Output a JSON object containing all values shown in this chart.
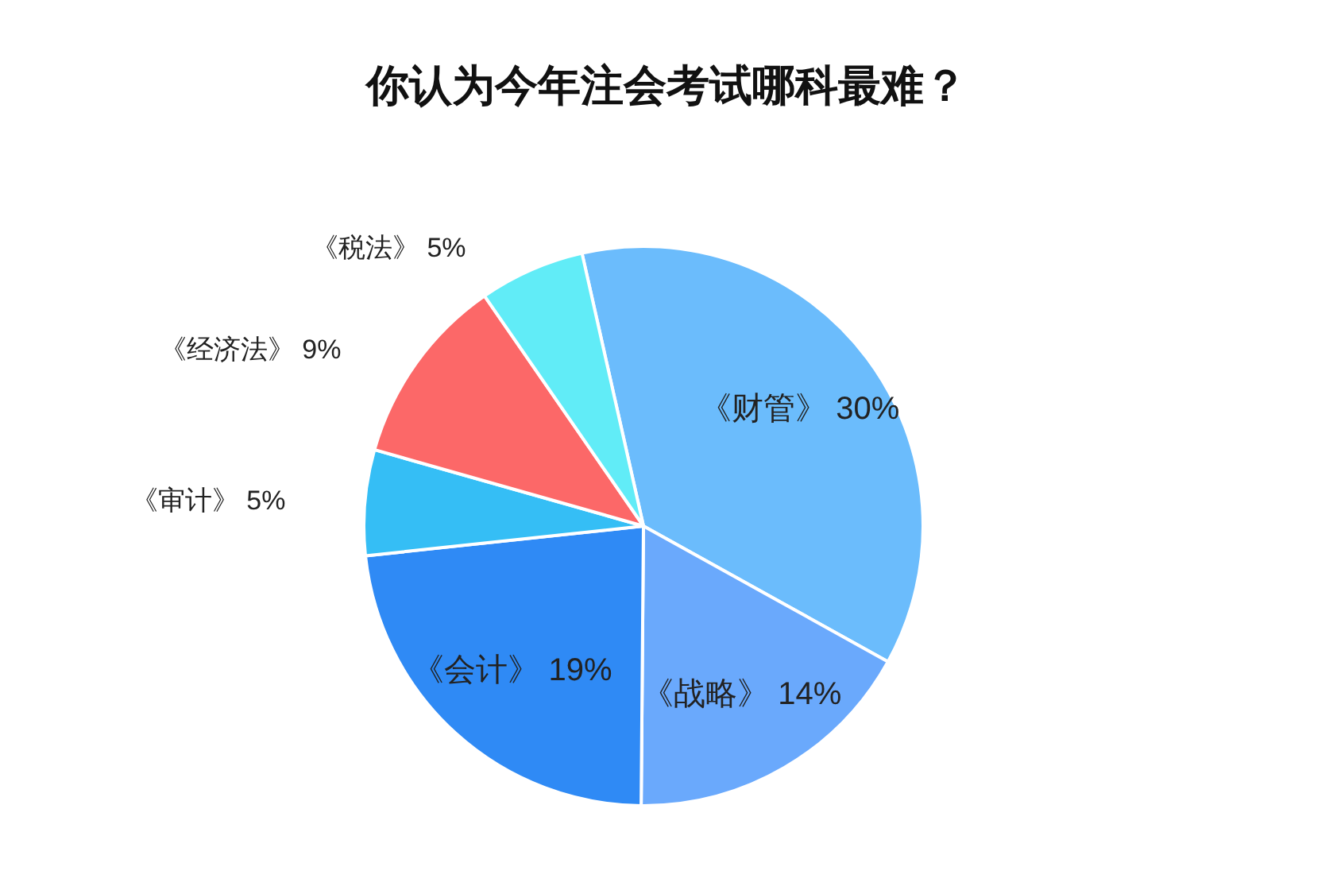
{
  "chart_data": {
    "type": "pie",
    "title": "你认为今年注会考试哪科最难？",
    "categories": [
      "《财管》",
      "《战略》",
      "《会计》",
      "《审计》",
      "《经济法》",
      "《税法》"
    ],
    "values": [
      30,
      14,
      19,
      5,
      9,
      5
    ],
    "value_labels": [
      "30%",
      "14%",
      "19%",
      "5%",
      "9%",
      "5%"
    ],
    "colors": [
      "#6bbcfc",
      "#6aa9fc",
      "#2f8af5",
      "#35bef5",
      "#fc6868",
      "#61ecf7"
    ],
    "legend": false
  }
}
